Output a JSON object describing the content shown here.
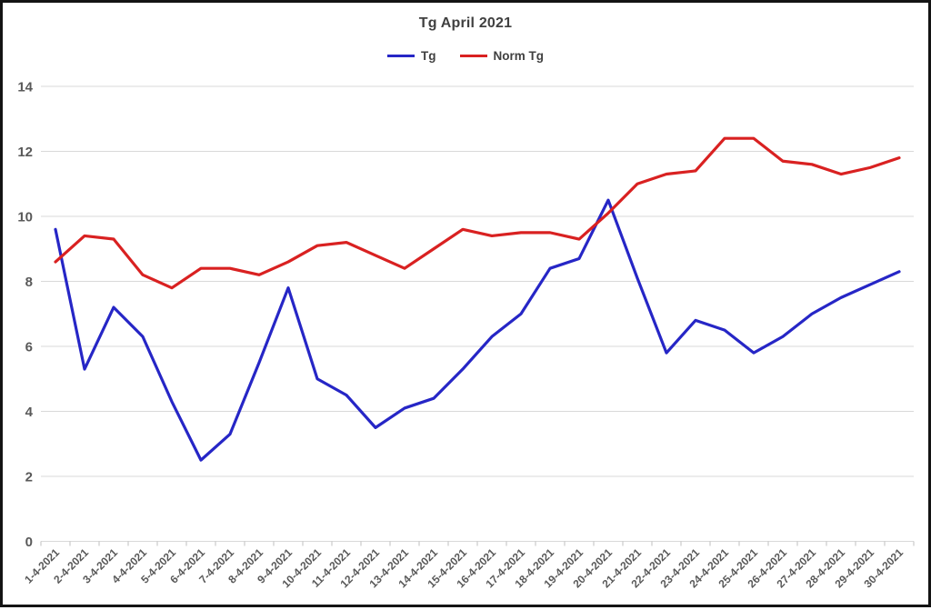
{
  "chart_data": {
    "type": "line",
    "title": "Tg April 2021",
    "categories": [
      "1-4-2021",
      "2-4-2021",
      "3-4-2021",
      "4-4-2021",
      "5-4-2021",
      "6-4-2021",
      "7-4-2021",
      "8-4-2021",
      "9-4-2021",
      "10-4-2021",
      "11-4-2021",
      "12-4-2021",
      "13-4-2021",
      "14-4-2021",
      "15-4-2021",
      "16-4-2021",
      "17-4-2021",
      "18-4-2021",
      "19-4-2021",
      "20-4-2021",
      "21-4-2021",
      "22-4-2021",
      "23-4-2021",
      "24-4-2021",
      "25-4-2021",
      "26-4-2021",
      "27-4-2021",
      "28-4-2021",
      "29-4-2021",
      "30-4-2021"
    ],
    "series": [
      {
        "name": "Tg",
        "color": "#2626C6",
        "values": [
          9.6,
          5.3,
          7.2,
          6.3,
          4.3,
          2.5,
          3.3,
          5.5,
          7.8,
          5.0,
          4.5,
          3.5,
          4.1,
          4.4,
          5.3,
          6.3,
          7.0,
          8.4,
          8.7,
          10.5,
          8.1,
          5.8,
          6.8,
          6.5,
          5.8,
          6.3,
          7.0,
          7.5,
          7.9,
          8.3
        ]
      },
      {
        "name": "Norm Tg",
        "color": "#D92121",
        "values": [
          8.6,
          9.4,
          9.3,
          8.2,
          7.8,
          8.4,
          8.4,
          8.2,
          8.6,
          9.1,
          9.2,
          8.8,
          8.4,
          9.0,
          9.6,
          9.4,
          9.5,
          9.5,
          9.3,
          10.1,
          11.0,
          11.3,
          11.4,
          12.4,
          12.4,
          11.7,
          11.6,
          11.3,
          11.5,
          11.8
        ]
      }
    ],
    "xlabel": "",
    "ylabel": "",
    "ylim": [
      0,
      14
    ],
    "ytick_step": 2,
    "grid": true,
    "legend_position": "top-center",
    "gridline_color": "#D9D9D9",
    "axis_label_color": "#595959",
    "title_color": "#404040",
    "background_color": "#FFFFFF",
    "border_color": "#141414"
  }
}
